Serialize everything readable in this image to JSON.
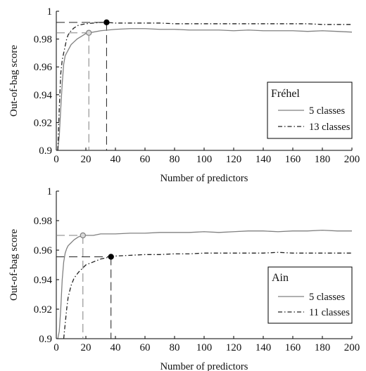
{
  "chart_data": [
    {
      "type": "line",
      "xlabel": "Number of predictors",
      "ylabel": "Out-of-bag score",
      "xlim": [
        0,
        200
      ],
      "ylim": [
        0.9,
        1.0
      ],
      "xticks": [
        "0",
        "20",
        "40",
        "60",
        "80",
        "100",
        "120",
        "140",
        "160",
        "180",
        "200"
      ],
      "yticks": [
        "0.9",
        "0.92",
        "0.94",
        "0.96",
        "0.98",
        "1"
      ],
      "xtick_values": [
        0,
        20,
        40,
        60,
        80,
        100,
        120,
        140,
        160,
        180,
        200
      ],
      "ytick_values": [
        0.9,
        0.92,
        0.94,
        0.96,
        0.98,
        1.0
      ],
      "legend": {
        "title": "Fréhel",
        "position": "right",
        "entries": [
          "5 classes",
          "13 classes"
        ]
      },
      "series": [
        {
          "name": "5 classes",
          "style": "solid",
          "color": "#808080",
          "x": [
            1,
            2,
            3,
            4,
            5,
            6,
            8,
            10,
            12,
            14,
            17,
            20,
            22,
            25,
            30,
            35,
            40,
            50,
            60,
            70,
            80,
            90,
            100,
            110,
            120,
            130,
            140,
            150,
            160,
            170,
            180,
            190,
            200
          ],
          "y": [
            0.9,
            0.91,
            0.93,
            0.948,
            0.962,
            0.968,
            0.972,
            0.976,
            0.978,
            0.98,
            0.982,
            0.984,
            0.9845,
            0.985,
            0.986,
            0.9865,
            0.987,
            0.9875,
            0.9875,
            0.987,
            0.987,
            0.9865,
            0.9865,
            0.9865,
            0.986,
            0.9865,
            0.986,
            0.986,
            0.986,
            0.9855,
            0.986,
            0.9855,
            0.985
          ],
          "optimum": {
            "x": 22,
            "y": 0.9845
          }
        },
        {
          "name": "13 classes",
          "style": "dash-dot",
          "color": "#202020",
          "x": [
            1,
            2,
            3,
            4,
            5,
            6,
            7,
            8,
            10,
            12,
            15,
            20,
            25,
            30,
            34,
            40,
            50,
            60,
            70,
            80,
            90,
            100,
            110,
            120,
            130,
            140,
            150,
            160,
            170,
            180,
            190,
            200
          ],
          "y": [
            0.9,
            0.93,
            0.955,
            0.965,
            0.97,
            0.975,
            0.98,
            0.983,
            0.986,
            0.988,
            0.99,
            0.991,
            0.9915,
            0.992,
            0.992,
            0.9915,
            0.9915,
            0.9915,
            0.9915,
            0.991,
            0.991,
            0.991,
            0.991,
            0.991,
            0.991,
            0.991,
            0.991,
            0.991,
            0.991,
            0.9905,
            0.9905,
            0.9905
          ],
          "optimum": {
            "x": 34,
            "y": 0.992
          }
        }
      ]
    },
    {
      "type": "line",
      "xlabel": "Number of predictors",
      "ylabel": "Out-of-bag score",
      "xlim": [
        0,
        200
      ],
      "ylim": [
        0.9,
        1.0
      ],
      "xticks": [
        "0",
        "20",
        "40",
        "60",
        "80",
        "100",
        "120",
        "140",
        "160",
        "180",
        "200"
      ],
      "yticks": [
        "0.9",
        "0.92",
        "0.94",
        "0.96",
        "0.98",
        "1"
      ],
      "xtick_values": [
        0,
        20,
        40,
        60,
        80,
        100,
        120,
        140,
        160,
        180,
        200
      ],
      "ytick_values": [
        0.9,
        0.92,
        0.94,
        0.96,
        0.98,
        1.0
      ],
      "legend": {
        "title": "Ain",
        "position": "bottom-right",
        "entries": [
          "5 classes",
          "11 classes"
        ]
      },
      "series": [
        {
          "name": "5 classes",
          "style": "solid",
          "color": "#808080",
          "x": [
            1,
            2,
            3,
            4,
            5,
            6,
            7,
            8,
            10,
            12,
            15,
            18,
            20,
            25,
            30,
            40,
            50,
            60,
            70,
            80,
            90,
            100,
            110,
            120,
            130,
            140,
            150,
            160,
            170,
            180,
            190,
            200
          ],
          "y": [
            0.9,
            0.905,
            0.92,
            0.94,
            0.952,
            0.958,
            0.961,
            0.963,
            0.965,
            0.967,
            0.969,
            0.97,
            0.97,
            0.97,
            0.971,
            0.971,
            0.9715,
            0.9715,
            0.972,
            0.972,
            0.972,
            0.9725,
            0.972,
            0.9725,
            0.973,
            0.973,
            0.9725,
            0.973,
            0.973,
            0.9735,
            0.973,
            0.973
          ],
          "optimum": {
            "x": 18,
            "y": 0.97
          }
        },
        {
          "name": "11 classes",
          "style": "dash-dot",
          "color": "#202020",
          "x": [
            5,
            6,
            7,
            8,
            10,
            12,
            15,
            18,
            20,
            25,
            30,
            37,
            40,
            50,
            60,
            70,
            80,
            90,
            100,
            110,
            120,
            130,
            140,
            150,
            160,
            170,
            180,
            190,
            200
          ],
          "y": [
            0.9,
            0.91,
            0.92,
            0.928,
            0.936,
            0.941,
            0.945,
            0.948,
            0.95,
            0.952,
            0.954,
            0.9555,
            0.956,
            0.9565,
            0.957,
            0.957,
            0.9575,
            0.9575,
            0.958,
            0.958,
            0.958,
            0.958,
            0.958,
            0.9585,
            0.958,
            0.958,
            0.958,
            0.958,
            0.958
          ],
          "optimum": {
            "x": 37,
            "y": 0.9555
          }
        }
      ]
    }
  ]
}
